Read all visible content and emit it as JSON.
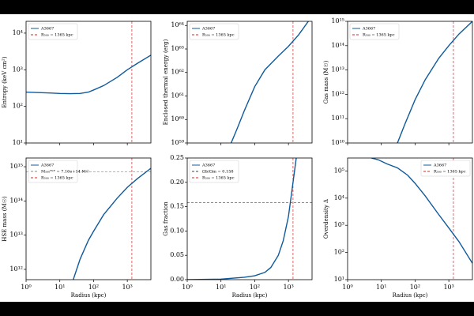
{
  "chart_data": [
    {
      "type": "line",
      "ylabel": "Entropy (keV cm²)",
      "legend": "upper left",
      "x": [
        1,
        2,
        5,
        10,
        20,
        40,
        70,
        100,
        200,
        500,
        1000,
        2000,
        5000
      ],
      "series": [
        {
          "name": "A3667",
          "color": "#0f5a9c",
          "values": [
            245,
            240,
            232,
            225,
            222,
            225,
            245,
            280,
            370,
            620,
            1000,
            1500,
            2500
          ]
        }
      ],
      "xlim": [
        1,
        5000
      ],
      "ylim": [
        10,
        21000
      ],
      "xlog": true,
      "ylog": true,
      "xticks": [
        1,
        10,
        100,
        1000
      ],
      "yticks": [
        {
          "value": 10,
          "label": "10¹"
        },
        {
          "value": 100,
          "label": "10²"
        },
        {
          "value": 1000,
          "label": "10³"
        },
        {
          "value": 10000,
          "label": "10⁴"
        }
      ],
      "vline": {
        "value": 1365,
        "label": "R₅₀₀ = 1365 kpc",
        "color": "#d62728"
      }
    },
    {
      "type": "line",
      "ylabel": "Enclosed thermal energy (erg)",
      "legend": "upper left",
      "x": [
        20,
        30,
        50,
        100,
        200,
        500,
        1000,
        2000,
        4000
      ],
      "series": [
        {
          "name": "A3667",
          "color": "#0f5a9c",
          "values": [
            1e+59,
            4e+59,
            2.5e+60,
            2.5e+61,
            1.3e+62,
            5e+62,
            1.3e+63,
            4e+63,
            1.6e+64
          ]
        }
      ],
      "xlim": [
        1,
        5000
      ],
      "ylim": [
        1e+59,
        1.5e+64
      ],
      "xlog": true,
      "ylog": true,
      "xticks": [
        1,
        10,
        100,
        1000
      ],
      "yticks": [
        {
          "value": 1e+59,
          "label": "10⁵⁹"
        },
        {
          "value": 1e+60,
          "label": "10⁶⁰"
        },
        {
          "value": 1e+61,
          "label": "10⁶¹"
        },
        {
          "value": 1e+62,
          "label": "10⁶²"
        },
        {
          "value": 1e+63,
          "label": "10⁶³"
        },
        {
          "value": 1e+64,
          "label": "10⁶⁴"
        }
      ],
      "vline": {
        "value": 1365,
        "label": "R₅₀₀ = 1365 kpc",
        "color": "#d62728"
      }
    },
    {
      "type": "line",
      "ylabel": "Gas mass (M☉)",
      "legend": "upper left",
      "x": [
        30,
        50,
        100,
        200,
        500,
        1000,
        2000,
        5000
      ],
      "series": [
        {
          "name": "A3667",
          "color": "#0f5a9c",
          "values": [
            10000000000.0,
            60000000000.0,
            600000000000.0,
            4000000000000.0,
            30000000000000.0,
            100000000000000.0,
            300000000000000.0,
            1000000000000000.0
          ]
        }
      ],
      "xlim": [
        1,
        5000
      ],
      "ylim": [
        10000000000.0,
        1000000000000000.0
      ],
      "xlog": true,
      "ylog": true,
      "xticks": [
        1,
        10,
        100,
        1000
      ],
      "yticks": [
        {
          "value": 10000000000.0,
          "label": "10¹⁰"
        },
        {
          "value": 100000000000.0,
          "label": "10¹¹"
        },
        {
          "value": 1000000000000.0,
          "label": "10¹²"
        },
        {
          "value": 10000000000000.0,
          "label": "10¹³"
        },
        {
          "value": 100000000000000.0,
          "label": "10¹⁴"
        },
        {
          "value": 1000000000000000.0,
          "label": "10¹⁵"
        }
      ],
      "vline": {
        "value": 1365,
        "label": "R₅₀₀ = 1365 kpc",
        "color": "#d62728"
      }
    },
    {
      "type": "line",
      "ylabel": "HSE mass (M☉)",
      "xlabel": "Radius (kpc)",
      "legend": "upper left",
      "x": [
        25,
        40,
        70,
        100,
        200,
        500,
        1000,
        2000,
        5000
      ],
      "series": [
        {
          "name": "A3667",
          "color": "#0f5a9c",
          "values": [
            500000000000.0,
            2000000000000.0,
            7000000000000.0,
            13000000000000.0,
            40000000000000.0,
            120000000000000.0,
            250000000000000.0,
            450000000000000.0,
            900000000000000.0
          ]
        }
      ],
      "xlim": [
        1,
        5000
      ],
      "ylim": [
        500000000000.0,
        1800000000000000.0
      ],
      "xlog": true,
      "ylog": true,
      "xticks": [
        {
          "value": 1,
          "label": "10⁰"
        },
        {
          "value": 10,
          "label": "10¹"
        },
        {
          "value": 100,
          "label": "10²"
        },
        {
          "value": 1000,
          "label": "10³"
        }
      ],
      "yticks": [
        {
          "value": 1000000000000.0,
          "label": "10¹²"
        },
        {
          "value": 10000000000000.0,
          "label": "10¹³"
        },
        {
          "value": 100000000000000.0,
          "label": "10¹⁴"
        },
        {
          "value": 1000000000000000.0,
          "label": "10¹⁵"
        }
      ],
      "hline": {
        "value": 716000000000000.0,
        "label": "M₅₀₀ᴴˢᴱ = 7.16e+14 M☉",
        "color": "#888888"
      },
      "vline": {
        "value": 1365,
        "label": "R₅₀₀ = 1365 kpc",
        "color": "#d62728"
      }
    },
    {
      "type": "line",
      "ylabel": "Gas fraction",
      "xlabel": "Radius (kpc)",
      "legend": "upper left",
      "x": [
        1,
        10,
        50,
        100,
        200,
        300,
        500,
        700,
        1000,
        1365,
        1700
      ],
      "series": [
        {
          "name": "A3667",
          "color": "#0f5a9c",
          "values": [
            0,
            0.001,
            0.005,
            0.008,
            0.015,
            0.025,
            0.05,
            0.08,
            0.13,
            0.2,
            0.25
          ]
        }
      ],
      "xlim": [
        1,
        5000
      ],
      "ylim": [
        0,
        0.25
      ],
      "xlog": true,
      "ylog": false,
      "xticks": [
        {
          "value": 1,
          "label": "10⁰"
        },
        {
          "value": 10,
          "label": "10¹"
        },
        {
          "value": 100,
          "label": "10²"
        },
        {
          "value": 1000,
          "label": "10³"
        }
      ],
      "yticks": [
        {
          "value": 0,
          "label": "0.00"
        },
        {
          "value": 0.05,
          "label": "0.05"
        },
        {
          "value": 0.1,
          "label": "0.10"
        },
        {
          "value": 0.15,
          "label": "0.15"
        },
        {
          "value": 0.2,
          "label": "0.20"
        },
        {
          "value": 0.25,
          "label": "0.25"
        }
      ],
      "hline": {
        "value": 0.158,
        "label": "Ωb/Ωm = 0.158",
        "color": "#444444"
      },
      "vline": {
        "value": 1365,
        "label": "R₅₀₀ = 1365 kpc",
        "color": "#d62728"
      }
    },
    {
      "type": "line",
      "ylabel": "Overdensity Δ",
      "xlabel": "Radius (kpc)",
      "legend": "upper right",
      "x": [
        5,
        8,
        15,
        30,
        60,
        100,
        200,
        500,
        1000,
        2000,
        5000
      ],
      "series": [
        {
          "name": "A3667",
          "color": "#0f5a9c",
          "values": [
            300000.0,
            260000.0,
            180000.0,
            130000.0,
            70000.0,
            35000.0,
            12000.0,
            2500,
            800,
            250,
            40
          ]
        }
      ],
      "xlim": [
        1,
        5000
      ],
      "ylim": [
        10,
        300000.0
      ],
      "xlog": true,
      "ylog": true,
      "xticks": [
        {
          "value": 1,
          "label": "10⁰"
        },
        {
          "value": 10,
          "label": "10¹"
        },
        {
          "value": 100,
          "label": "10²"
        },
        {
          "value": 1000,
          "label": "10³"
        }
      ],
      "yticks": [
        {
          "value": 10,
          "label": "10¹"
        },
        {
          "value": 100,
          "label": "10²"
        },
        {
          "value": 1000,
          "label": "10³"
        },
        {
          "value": 10000,
          "label": "10⁴"
        },
        {
          "value": 100000,
          "label": "10⁵"
        }
      ],
      "vline": {
        "value": 1365,
        "label": "R₅₀₀ = 1365 kpc",
        "color": "#d62728"
      }
    }
  ]
}
